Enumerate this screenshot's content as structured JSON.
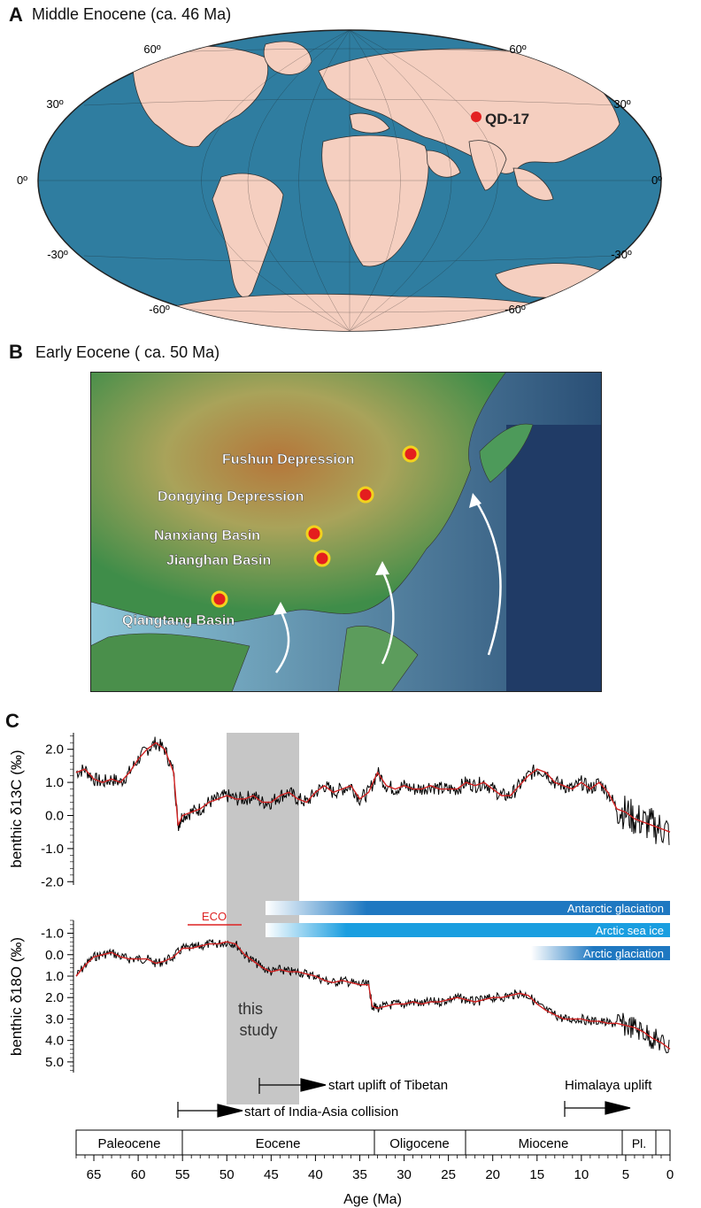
{
  "panel_a": {
    "letter": "A",
    "title": "Middle Enocene (ca. 46 Ma)",
    "lat_labels_left": [
      "60º",
      "30º",
      "0º",
      "-30º",
      "-60º"
    ],
    "lat_labels_right": [
      "60º",
      "30º",
      "0º",
      "-30º",
      "-60º"
    ],
    "site_label": "QD-17",
    "colors": {
      "ocean": "#2f7da0",
      "land": "#f5cfc0",
      "site": "#e32222"
    }
  },
  "panel_b": {
    "letter": "B",
    "title": "Early Eocene ( ca. 50 Ma)",
    "basins": [
      "Fushun Depression",
      "Dongying Depression",
      "Nanxiang Basin",
      "Jianghan Basin",
      "Qiangtang Basin"
    ],
    "colors": {
      "marker_fill": "#e41e1e",
      "marker_ring": "#f2d21e"
    }
  },
  "panel_c": {
    "letter": "C",
    "study_label_1": "this",
    "study_label_2": "study",
    "eco_label": "ECO",
    "bars": {
      "antarctic": "Antarctic glaciation",
      "arctic_ice": "Arctic sea ice",
      "arctic_glac": "Arctic glaciation"
    },
    "events": {
      "tibet": "start uplift of Tibetan",
      "himalaya": "Himalaya uplift",
      "india": "start of India-Asia collision"
    },
    "epochs": [
      "Paleocene",
      "Eocene",
      "Oligocene",
      "Miocene",
      "Pl."
    ],
    "xlabel": "Age (Ma)",
    "x_ticks": [
      "65",
      "60",
      "55",
      "50",
      "45",
      "40",
      "35",
      "30",
      "25",
      "20",
      "15",
      "10",
      "5",
      "0"
    ],
    "c13_ylabel": "benthic δ13C (‰)",
    "c13_ticks": [
      "2.0",
      "1.0",
      "0.0",
      "-1.0",
      "-2.0"
    ],
    "o18_ylabel": "benthic δ18O (‰)",
    "o18_ticks": [
      "-1.0",
      "0.0",
      "1.0",
      "2.0",
      "3.0",
      "4.0",
      "5.0"
    ]
  },
  "chart_data": [
    {
      "type": "line",
      "ylabel": "benthic δ13C (‰)",
      "xlabel": "Age (Ma)",
      "xlim": [
        67,
        0
      ],
      "ylim": [
        -2.1,
        2.5
      ],
      "series": [
        {
          "x": [
            67,
            66,
            65,
            64,
            63,
            62,
            61,
            60,
            59,
            58,
            57,
            56,
            55.5,
            55,
            54,
            53,
            52,
            51,
            50,
            49,
            48,
            47,
            46,
            45,
            44,
            43,
            42,
            41,
            40,
            39,
            38,
            37,
            36,
            35,
            34,
            33,
            32,
            31,
            30,
            29,
            28,
            27,
            26,
            25,
            24,
            23,
            22,
            21,
            20,
            19,
            18,
            17,
            16,
            15,
            14,
            13,
            12,
            11,
            10,
            9,
            8,
            7,
            6,
            5,
            4,
            3,
            2,
            1,
            0
          ],
          "y": [
            1.3,
            1.4,
            1.1,
            1.0,
            1.1,
            1.0,
            1.3,
            1.7,
            2.0,
            2.2,
            2.0,
            1.3,
            -0.3,
            0.0,
            0.1,
            0.2,
            0.4,
            0.5,
            0.6,
            0.5,
            0.5,
            0.6,
            0.4,
            0.4,
            0.6,
            0.7,
            0.5,
            0.4,
            0.7,
            0.9,
            0.7,
            0.8,
            0.9,
            0.5,
            0.7,
            1.3,
            0.9,
            0.8,
            0.9,
            0.8,
            0.8,
            0.9,
            0.8,
            0.8,
            0.8,
            1.0,
            0.9,
            1.0,
            0.8,
            0.6,
            0.6,
            0.9,
            1.2,
            1.4,
            1.3,
            1.0,
            0.9,
            0.8,
            1.0,
            0.8,
            1.0,
            0.7,
            0.2,
            0.1,
            -0.1,
            -0.2,
            -0.3,
            -0.4,
            -0.5
          ]
        }
      ]
    },
    {
      "type": "line",
      "ylabel": "benthic δ18O (‰)",
      "xlabel": "Age (Ma)",
      "xlim": [
        67,
        0
      ],
      "ylim": [
        5.5,
        -1.6
      ],
      "series": [
        {
          "x": [
            67,
            66,
            65,
            64,
            63,
            62,
            61,
            60,
            59,
            58,
            57,
            56,
            55,
            54,
            53,
            52,
            51,
            50,
            49,
            48,
            47,
            46,
            45,
            44,
            43,
            42,
            41,
            40,
            39,
            38,
            37,
            36,
            35,
            34,
            33.6,
            33,
            32,
            31,
            30,
            29,
            28,
            27,
            26,
            25,
            24,
            23,
            22,
            21,
            20,
            19,
            18,
            17,
            16,
            15,
            14,
            13,
            12,
            11,
            10,
            9,
            8,
            7,
            6,
            5,
            4,
            3,
            2,
            1,
            0
          ],
          "y": [
            1.0,
            0.5,
            0.1,
            0.0,
            -0.1,
            0.1,
            0.2,
            0.2,
            0.2,
            0.4,
            0.3,
            0.1,
            -0.3,
            -0.3,
            -0.4,
            -0.5,
            -0.5,
            -0.6,
            -0.5,
            0.0,
            0.3,
            0.6,
            0.8,
            0.7,
            0.8,
            0.8,
            0.9,
            1.0,
            1.2,
            1.3,
            1.2,
            1.3,
            1.4,
            1.4,
            2.4,
            2.5,
            2.4,
            2.3,
            2.3,
            2.2,
            2.3,
            2.2,
            2.2,
            2.1,
            2.0,
            2.1,
            2.2,
            2.1,
            2.0,
            2.0,
            1.9,
            1.8,
            1.9,
            2.3,
            2.6,
            2.8,
            3.0,
            3.0,
            3.0,
            3.1,
            3.1,
            3.2,
            3.2,
            3.3,
            3.4,
            3.6,
            3.9,
            4.1,
            4.4
          ]
        }
      ]
    }
  ]
}
